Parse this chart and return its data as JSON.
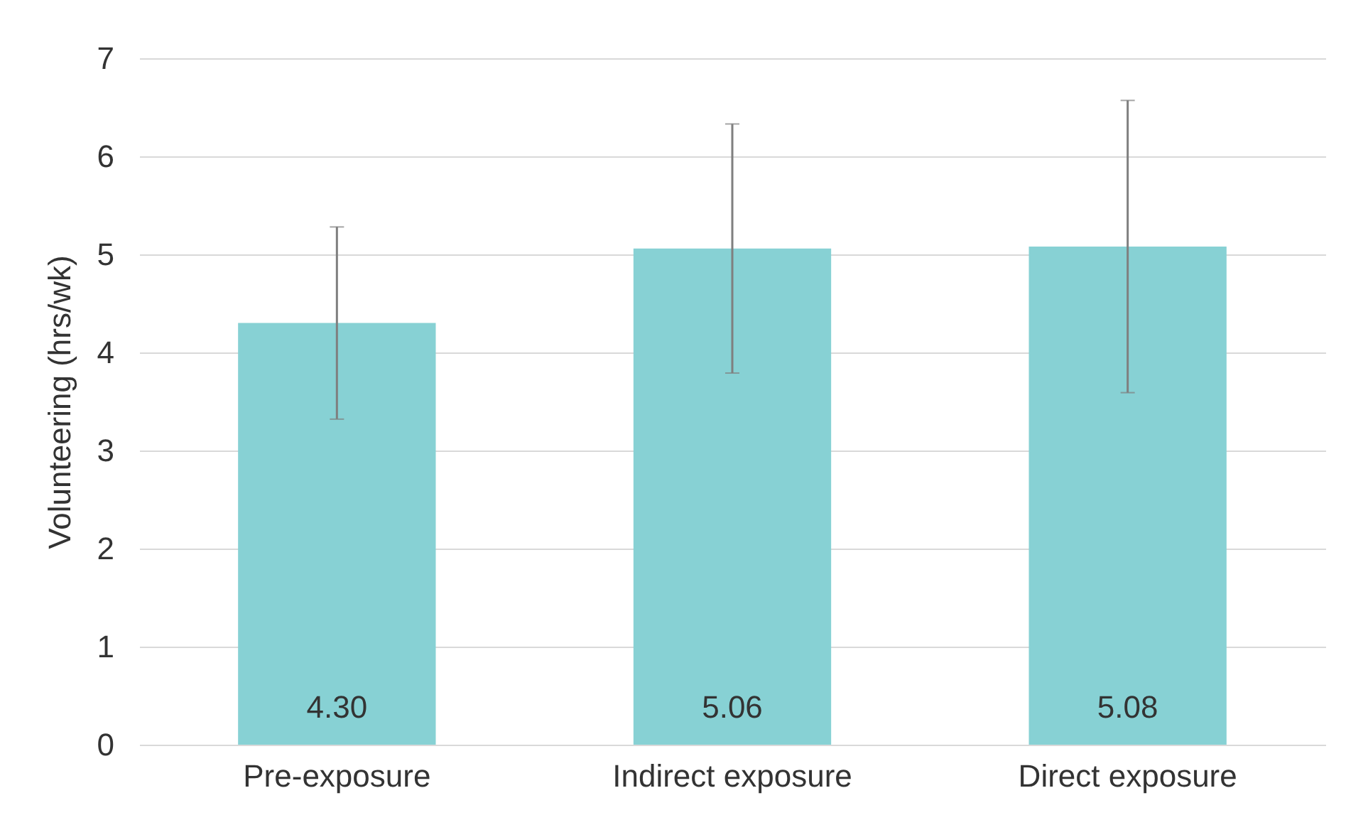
{
  "chart_data": {
    "type": "bar",
    "ylabel": "Volunteering (hrs/wk)",
    "categories": [
      "Pre-exposure",
      "Indirect exposure",
      "Direct exposure"
    ],
    "values": [
      4.3,
      5.06,
      5.08
    ],
    "errors": [
      0.98,
      1.27,
      1.49
    ],
    "color": "#87d1d4",
    "ylim": [
      0,
      7
    ],
    "yticks": [
      0,
      1,
      2,
      3,
      4,
      5,
      6,
      7
    ],
    "grid": "y",
    "value_labels": [
      "4.30",
      "5.06",
      "5.08"
    ]
  }
}
